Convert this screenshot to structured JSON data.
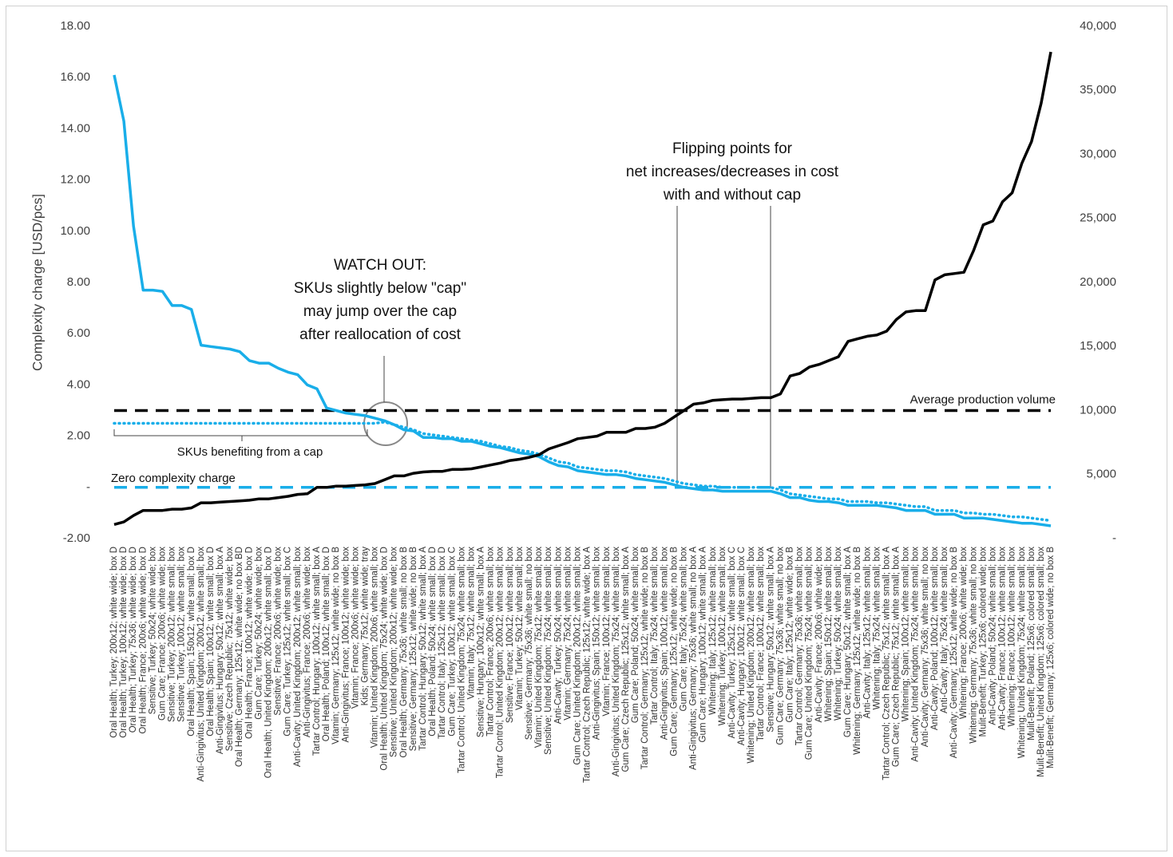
{
  "chart_data": {
    "type": "line",
    "y_label": "Complexity charge [USD/pcs]",
    "categories": [
      "Oral Health; Turkey; 200x12; white wide; box D",
      "Oral Health; Turkey; 100x12; white wide; box D",
      "Oral Health; Turkey; 75x36; white wide; box D",
      "Oral Health; France; 200x6; white wide; box D",
      "Sensitive; Turkey; 50x24; white wide; box",
      "Gum Care; France; 200x6; white wide; box",
      "Sensitive; Turkey; 200x12; white small; box",
      "Sensitive; Turkey; 100x12; white small; box",
      "Oral Health; Spain; 150x12; white small; box D",
      "Anti-Gingivitus; United Kingdom; 200x12; white small; box",
      "Oral Health; Spain; 100x12; white small; box D",
      "Anti-Gingivitus; Hungary; 50x12; white small; box A",
      "Sensitive; Czech Republic; 75x12; white wide; box",
      "Oral Health; Germany; 125x12; white wide; no box BD",
      "Oral Health; France; 100x12; white wide; box D",
      "Gum Care; Turkey; 50x24; white wide; box",
      "Oral Health; United Kingdom; 200x12; white small; box D",
      "Sensitive; France; 200x6; white wide; box",
      "Gum Care; Turkey; 125x12; white small; box C",
      "Anti-Cavity; United Kingdom; 200x12; white small; box",
      "Anti-Gingivitus; France; 200x6; white wide; box",
      "Tartar Control; Hungary; 100x12; white small; box A",
      "Oral Health; Poland; 100x12; white small; box D",
      "Vitamin; Germany; 125x12; white wide; no box B",
      "Anti-Gingivitus; France; 100x12; white wide; box",
      "Vitamin; France; 200x6; white wide; box",
      "Kids; Germany; 75x12; white wide; tray",
      "Vitamin; United Kingdom; 200x6; white small; box",
      "Oral Health; United Kingdom; 75x24; white wide; box D",
      "Sensitive; United Kingdom; 200x12; white wide; box",
      "Oral Health; Germany; 75x36; white small; no box B",
      "Sensitive; Germany; 125x12; white wide; no box B",
      "Tartar Control; Hungary; 50x12; white small; box A",
      "Oral Health; Poland; 50x24; white small; box D",
      "Tartar Control; Italy; 125x12; white small; box D",
      "Gum Care; Turkey; 100x12; white small; box C",
      "Tartar Control; United Kingdom; 75x24; white small; box",
      "Vitamin; Italy; 75x12; white small; box",
      "Sensitive; Hungary; 100x12; white small; box A",
      "Tartar Control; France; 200x6; white small; box",
      "Tartar Control; United Kingdom; 200x12; white small; box",
      "Sensitive; France; 100x12; white small; box",
      "Vitamin; Turkey; 50x12; white small; box",
      "Sensitive; Germany; 75x36; white small; no box",
      "Vitamin; United Kingdom; 75x12; white small; box",
      "Sensitive; United Kingdom; 75x24; white small; box",
      "Anti-Cavity; Turkey; 50x24; white small; box",
      "Vitamin; Germany; 75x24; white small; box",
      "Gum Care; United Kingdom; 200x12; white small; box",
      "Tartar Control; Czech Republic; 125x12; white wide; box A",
      "Anti-Gingivitus; Spain; 150x12; white small; box",
      "Vitamin; France; 100x12; white small; box",
      "Anti-Gingivitus; United Kingdom; 75x24; white small; box",
      "Gum Care; Czech Republic; 125x12; white small; box A",
      "Gum Care; Poland; 50x24; white small; box",
      "Tartar Control; Germany; 125x12; white wide; no box B",
      "Tartar Control; Italy; 75x24; white small; box",
      "Anti-Gingivitus; Spain; 100x12; white small; box",
      "Gum Care; Germany; 125x12; white wide; no box B",
      "Gum Care; Italy; 75x24; white small; box",
      "Anti-Gingivitus; Germany; 75x36; white small; no box A",
      "Gum Care; Hungary; 100x12; white small; box A",
      "Whitening; Italy; 125x12; white small; box",
      "Whitening; Turkey; 100x12; white small; box",
      "Anti-Cavity; Turkey; 125x12; white small; box C",
      "Anti-Cavity; Hungary; 100x12; white small; box C",
      "Whitening; United Kingdom; 200x12; white small; box",
      "Tartar Control; France; 100x12; white small; box",
      "Sensitive; Hungary; 50x12; white small; box A",
      "Gum Care; Germany; 75x36; white small; no box",
      "Gum Care; Italy; 125x12; white wide; box B",
      "Tartar Control; Germany; 75x36; white small; box",
      "Gum Care; United Kingdom; 75x24; white small; box",
      "Anti-Cavity; France; 200x6; white wide; box",
      "Whitening; Spain; 150x12; white small; box",
      "Whitening; Turkey; 50x24; white small; box",
      "Gum Care; Hungary; 50x12; white small; box A",
      "Whitening; Germany; 125x12; white wide; no box B",
      "Anti-Cavity; Italy; 125x12; white small; box",
      "Whitening; Italy; 75x24; white small; box",
      "Tartar Control; Czech Republic; 75x12; white small; box A",
      "Gum Care; Czech Republic; 75x12; white small; box A",
      "Whitening; Spain; 100x12; white small; box",
      "Anti-Cavity; United Kingdom; 75x24; white small; box",
      "Anti-Cavity; Germany; 75x36; white small; no box",
      "Anti-Cavity; Poland; 100x12; white small; box",
      "Anti-Cavity; Italy; 75x24; white small; box",
      "Anti-Cavity; Germany; 125x12; white wide; no box B",
      "Whitening; France; 200x6; white wide; box",
      "Whitening; Germany; 75x36; white small; no box",
      "Mulit-Benefit; Turkey; 125x6; colored wide; box",
      "Anti-Cavity; Poland; 50x24; white small; box",
      "Anti-Cavity; France; 100x12; white small; box",
      "Whitening; France; 100x12; white small; box",
      "Whitening; United Kingdom; 75x24; white small; box",
      "Mulit-Benefit; Poland; 125x6; colored small; box",
      "Mulit-Benefit; United Kingdom; 125x6; colored small; box",
      "Mulit-Benefit; Germany; 125x6; colored wide; no box B"
    ],
    "series": [
      {
        "color": "#19aee9",
        "style": "solid",
        "values": [
          16.1,
          14.3,
          10.2,
          7.7,
          7.7,
          7.65,
          7.1,
          7.1,
          6.95,
          5.55,
          5.5,
          5.45,
          5.4,
          5.3,
          4.95,
          4.85,
          4.85,
          4.65,
          4.5,
          4.4,
          4.0,
          3.85,
          3.1,
          3.0,
          2.9,
          2.85,
          2.8,
          2.7,
          2.6,
          2.45,
          2.25,
          2.2,
          1.95,
          1.95,
          1.9,
          1.9,
          1.8,
          1.8,
          1.7,
          1.6,
          1.55,
          1.45,
          1.35,
          1.3,
          1.2,
          1.0,
          0.85,
          0.8,
          0.65,
          0.6,
          0.55,
          0.5,
          0.5,
          0.45,
          0.35,
          0.3,
          0.25,
          0.2,
          0.1,
          0.0,
          -0.05,
          -0.1,
          -0.1,
          -0.15,
          -0.15,
          -0.15,
          -0.15,
          -0.15,
          -0.15,
          -0.25,
          -0.4,
          -0.4,
          -0.5,
          -0.55,
          -0.55,
          -0.6,
          -0.7,
          -0.7,
          -0.7,
          -0.7,
          -0.75,
          -0.8,
          -0.9,
          -0.9,
          -0.9,
          -1.05,
          -1.05,
          -1.05,
          -1.2,
          -1.2,
          -1.2,
          -1.25,
          -1.3,
          -1.35,
          -1.4,
          -1.4,
          -1.45,
          -1.5
        ]
      },
      {
        "color": "#19aee9",
        "style": "dotted",
        "values": [
          2.5,
          2.5,
          2.5,
          2.5,
          2.5,
          2.5,
          2.5,
          2.5,
          2.5,
          2.5,
          2.5,
          2.5,
          2.5,
          2.5,
          2.5,
          2.5,
          2.5,
          2.5,
          2.5,
          2.5,
          2.5,
          2.5,
          2.5,
          2.5,
          2.5,
          2.5,
          2.5,
          2.5,
          2.55,
          2.45,
          2.35,
          2.25,
          2.1,
          2.05,
          2.0,
          1.95,
          1.9,
          1.85,
          1.8,
          1.7,
          1.6,
          1.55,
          1.45,
          1.4,
          1.3,
          1.15,
          1.0,
          0.95,
          0.8,
          0.75,
          0.7,
          0.65,
          0.65,
          0.6,
          0.5,
          0.45,
          0.4,
          0.35,
          0.25,
          0.15,
          0.1,
          0.05,
          0.05,
          0,
          0,
          0,
          0,
          0,
          0,
          -0.1,
          -0.25,
          -0.3,
          -0.35,
          -0.4,
          -0.45,
          -0.45,
          -0.55,
          -0.55,
          -0.55,
          -0.6,
          -0.6,
          -0.65,
          -0.7,
          -0.75,
          -0.75,
          -0.9,
          -0.9,
          -0.9,
          -1.0,
          -1.0,
          -1.05,
          -1.05,
          -1.1,
          -1.15,
          -1.15,
          -1.2,
          -1.25,
          -1.3
        ]
      },
      {
        "color": "#000000",
        "style": "solid",
        "axis": "y2",
        "values": [
          1100,
          1300,
          1800,
          2200,
          2200,
          2200,
          2300,
          2300,
          2400,
          2800,
          2800,
          2850,
          2900,
          2950,
          3000,
          3100,
          3100,
          3200,
          3300,
          3450,
          3500,
          4000,
          4000,
          4100,
          4100,
          4150,
          4200,
          4300,
          4600,
          4900,
          4900,
          5100,
          5200,
          5250,
          5250,
          5400,
          5400,
          5450,
          5600,
          5750,
          5900,
          6100,
          6200,
          6350,
          6550,
          7000,
          7250,
          7500,
          7800,
          7900,
          8000,
          8300,
          8300,
          8300,
          8600,
          8600,
          8700,
          9000,
          9500,
          10000,
          10500,
          10600,
          10800,
          10850,
          10900,
          10900,
          10950,
          11000,
          11000,
          11300,
          12700,
          12900,
          13400,
          13600,
          13900,
          14200,
          15400,
          15600,
          15800,
          15900,
          16200,
          17100,
          17700,
          17800,
          17800,
          20200,
          20600,
          20700,
          20800,
          22500,
          24500,
          24800,
          26300,
          27000,
          29300,
          31000,
          34000,
          38000
        ]
      }
    ],
    "ylim": [
      -2,
      18
    ],
    "yticks": [
      {
        "value": -2,
        "label": "-2.00"
      },
      {
        "value": 0,
        "label": "-"
      },
      {
        "value": 2,
        "label": "2.00"
      },
      {
        "value": 4,
        "label": "4.00"
      },
      {
        "value": 6,
        "label": "6.00"
      },
      {
        "value": 8,
        "label": "8.00"
      },
      {
        "value": 10,
        "label": "10.00"
      },
      {
        "value": 12,
        "label": "12.00"
      },
      {
        "value": 14,
        "label": "14.00"
      },
      {
        "value": 16,
        "label": "16.00"
      },
      {
        "value": 18,
        "label": "18.00"
      }
    ],
    "y2lim": [
      0,
      40000
    ],
    "y2ticks": [
      {
        "value": 0,
        "label": "-"
      },
      {
        "value": 5000,
        "label": "5,000"
      },
      {
        "value": 10000,
        "label": "10,000"
      },
      {
        "value": 15000,
        "label": "15,000"
      },
      {
        "value": 20000,
        "label": "20,000"
      },
      {
        "value": 25000,
        "label": "25,000"
      },
      {
        "value": 30000,
        "label": "30,000"
      },
      {
        "value": 35000,
        "label": "35,000"
      },
      {
        "value": 40000,
        "label": "40,000"
      }
    ],
    "grid": false,
    "reference_lines": [
      {
        "label": "Average production volume",
        "value": 10000,
        "axis": "y2",
        "color": "#000000"
      },
      {
        "label": "Zero complexity charge",
        "value": 0,
        "color": "#19aee9"
      }
    ],
    "annotations": [
      {
        "lines": [
          "WATCH OUT:",
          "SKUs slightly below \"cap\"",
          "may jump over the cap",
          "after reallocation of cost"
        ]
      },
      {
        "lines": [
          "Flipping points for",
          "net increases/decreases in cost",
          "with and without cap"
        ]
      },
      {
        "lines": [
          "SKUs benefiting from a cap"
        ]
      }
    ]
  }
}
